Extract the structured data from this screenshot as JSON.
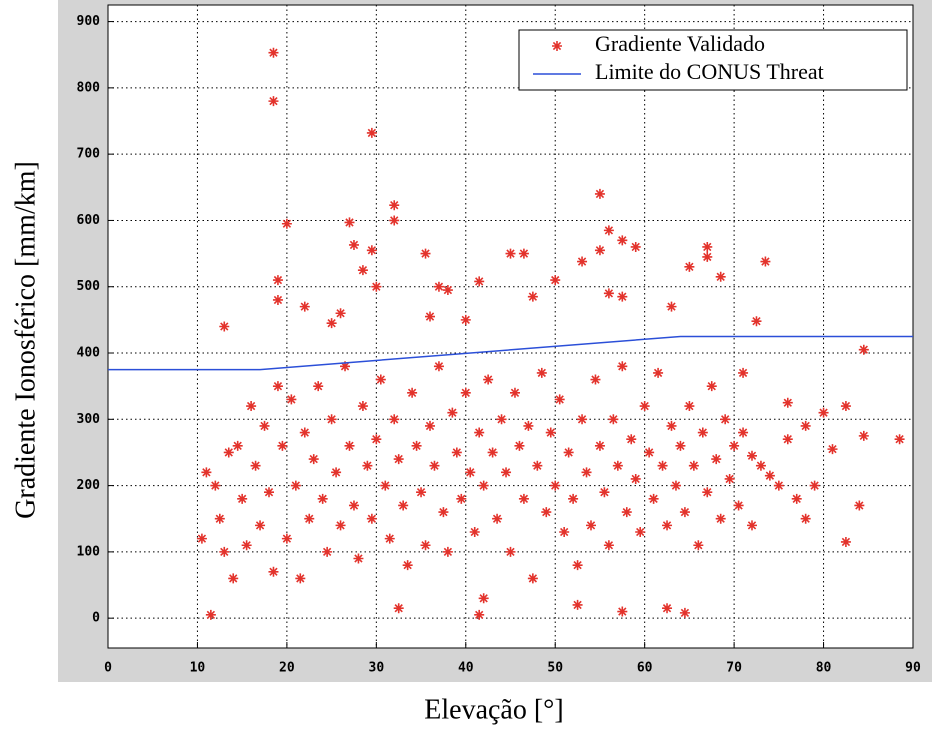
{
  "chart_data": {
    "type": "scatter",
    "x_label": "Elevação [°]",
    "y_label": "Gradiente Ionosférico [mm/km]",
    "xlim": [
      0,
      90
    ],
    "ylim": [
      -45,
      925
    ],
    "xticks": [
      0,
      10,
      20,
      30,
      40,
      50,
      60,
      70,
      80,
      90
    ],
    "yticks": [
      0,
      100,
      200,
      300,
      400,
      500,
      600,
      700,
      800,
      900
    ],
    "grid": true,
    "legend": "upper right",
    "series": [
      {
        "name": "Gradiente Validado",
        "color": "#e3332c",
        "marker": "asterisk",
        "x": [
          18.5,
          18.5,
          29.5,
          55,
          32,
          20,
          27,
          32,
          56,
          57.5,
          59,
          67,
          67,
          73.5,
          53,
          55,
          35.5,
          45,
          46.5,
          29.5,
          27.5,
          28.5,
          65,
          68.5,
          50,
          41.5,
          19,
          37,
          38,
          30,
          47.5,
          56,
          57.5,
          63,
          36,
          40,
          72.5,
          13,
          19,
          22,
          26,
          25,
          84.5,
          10.5,
          11,
          11.5,
          41.5,
          57.5,
          64.5,
          62.5,
          52.5,
          32.5,
          42,
          78,
          82.5,
          84,
          84.5,
          88.5,
          82.5,
          80,
          76,
          78,
          81,
          79,
          74,
          72,
          71,
          12,
          12.5,
          13,
          13.5,
          14,
          14.5,
          15,
          15.5,
          16,
          16.5,
          17,
          17.5,
          18,
          18.5,
          19,
          19.5,
          20,
          20.5,
          21,
          21.5,
          22,
          22.5,
          23,
          23.5,
          24,
          24.5,
          25,
          25.5,
          26,
          26.5,
          27,
          27.5,
          28,
          28.5,
          29,
          29.5,
          30,
          30.5,
          31,
          31.5,
          32,
          32.5,
          33,
          33.5,
          34,
          34.5,
          35,
          35.5,
          36,
          36.5,
          37,
          37.5,
          38,
          38.5,
          39,
          39.5,
          40,
          40.5,
          41,
          41.5,
          42,
          42.5,
          43,
          43.5,
          44,
          44.5,
          45,
          45.5,
          46,
          46.5,
          47,
          47.5,
          48,
          48.5,
          49,
          49.5,
          50,
          50.5,
          51,
          51.5,
          52,
          52.5,
          53,
          53.5,
          54,
          54.5,
          55,
          55.5,
          56,
          56.5,
          57,
          57.5,
          58,
          58.5,
          59,
          59.5,
          60,
          60.5,
          61,
          61.5,
          62,
          62.5,
          63,
          63.5,
          64,
          64.5,
          65,
          65.5,
          66,
          66.5,
          67,
          67.5,
          68,
          68.5,
          69,
          69.5,
          70,
          70.5,
          71,
          72,
          73,
          75,
          76,
          77
        ],
        "values": [
          853,
          780,
          732,
          640,
          623,
          595,
          597,
          600,
          585,
          570,
          560,
          560,
          545,
          538,
          538,
          555,
          550,
          550,
          550,
          555,
          563,
          525,
          530,
          515,
          510,
          508,
          510,
          500,
          495,
          500,
          485,
          490,
          485,
          470,
          455,
          450,
          448,
          440,
          480,
          470,
          460,
          445,
          405,
          120,
          220,
          5,
          5,
          10,
          8,
          15,
          20,
          15,
          30,
          150,
          115,
          170,
          275,
          270,
          320,
          310,
          325,
          290,
          255,
          200,
          215,
          245,
          280,
          200,
          150,
          100,
          250,
          60,
          260,
          180,
          110,
          320,
          230,
          140,
          290,
          190,
          70,
          350,
          260,
          120,
          330,
          200,
          60,
          280,
          150,
          240,
          350,
          180,
          100,
          300,
          220,
          140,
          380,
          260,
          170,
          90,
          320,
          230,
          150,
          270,
          360,
          200,
          120,
          300,
          240,
          170,
          80,
          340,
          260,
          190,
          110,
          290,
          230,
          380,
          160,
          100,
          310,
          250,
          180,
          340,
          220,
          130,
          280,
          200,
          360,
          250,
          150,
          300,
          220,
          100,
          340,
          260,
          180,
          290,
          60,
          230,
          370,
          160,
          280,
          200,
          330,
          130,
          250,
          180,
          80,
          300,
          220,
          140,
          360,
          260,
          190,
          110,
          300,
          230,
          380,
          160,
          270,
          210,
          130,
          320,
          250,
          180,
          370,
          230,
          140,
          290,
          200,
          260,
          160,
          320,
          230,
          110,
          280,
          190,
          350,
          240,
          150,
          300,
          210,
          260,
          170,
          370,
          140,
          230,
          200,
          270,
          180
        ]
      },
      {
        "name": "Limite do CONUS Threat",
        "color": "#2b4fd8",
        "marker": "line",
        "x": [
          0,
          17,
          64,
          90
        ],
        "values": [
          375,
          375,
          425,
          425
        ]
      }
    ]
  }
}
